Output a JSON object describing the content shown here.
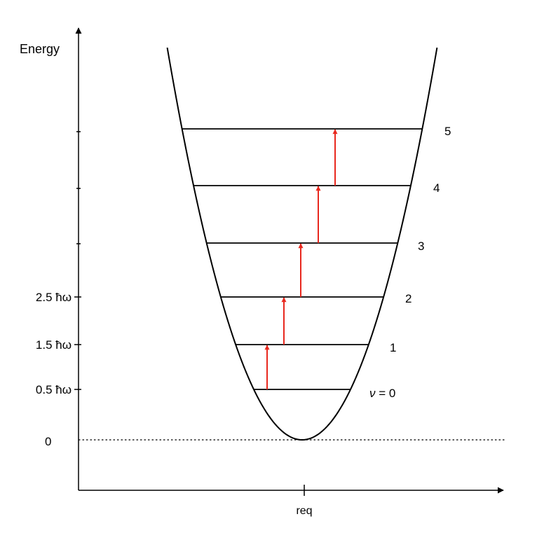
{
  "axes": {
    "y_label": "Energy",
    "x_tick_label": "req",
    "zero_label": "0"
  },
  "energy_ticks": [
    {
      "label": "0.5 ħω",
      "level": 0.5
    },
    {
      "label": "1.5 ħω",
      "level": 1.5
    },
    {
      "label": "2.5 ħω",
      "level": 2.5
    }
  ],
  "levels": [
    {
      "v": 0,
      "label_prefix": "ν",
      "label_suffix": " = 0"
    },
    {
      "v": 1,
      "label": "1"
    },
    {
      "v": 2,
      "label": "2"
    },
    {
      "v": 3,
      "label": "3"
    },
    {
      "v": 4,
      "label": "4"
    },
    {
      "v": 5,
      "label": "5"
    }
  ],
  "transitions": [
    {
      "from": 0,
      "to": 1
    },
    {
      "from": 1,
      "to": 2
    },
    {
      "from": 2,
      "to": 3
    },
    {
      "from": 3,
      "to": 4
    },
    {
      "from": 4,
      "to": 5
    }
  ],
  "colors": {
    "axis": "#000000",
    "curve": "#000000",
    "level_line": "#000000",
    "transition_arrow": "#e8281e"
  }
}
